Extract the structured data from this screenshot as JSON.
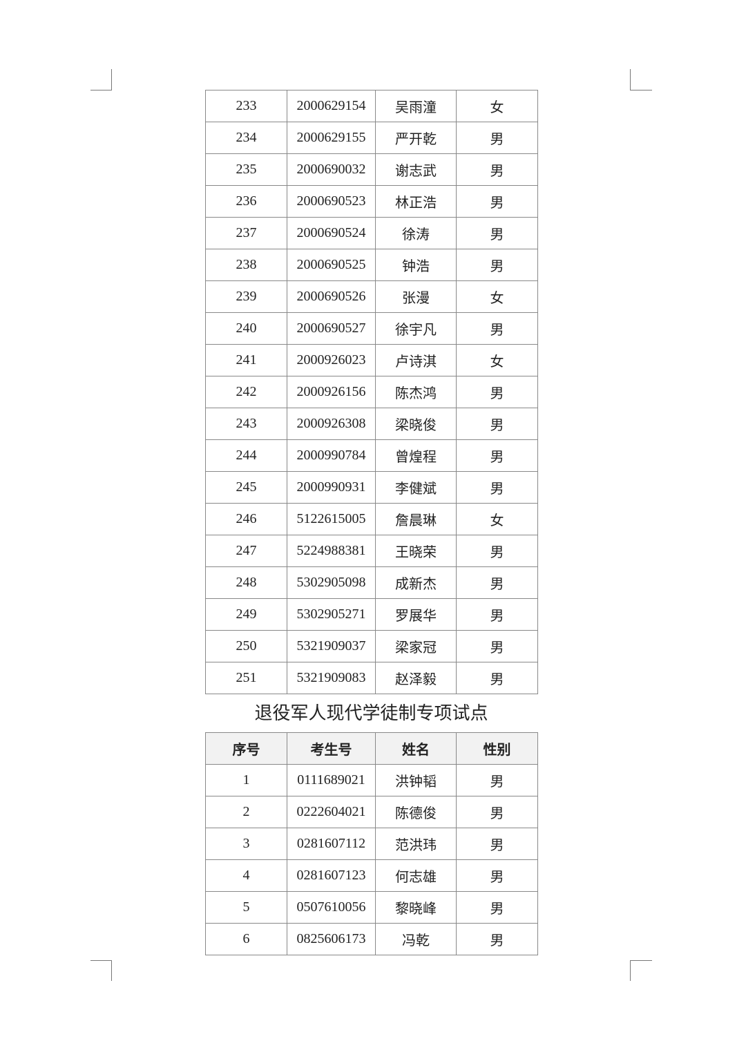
{
  "table1": {
    "rows": [
      [
        "233",
        "2000629154",
        "吴雨潼",
        "女"
      ],
      [
        "234",
        "2000629155",
        "严开乾",
        "男"
      ],
      [
        "235",
        "2000690032",
        "谢志武",
        "男"
      ],
      [
        "236",
        "2000690523",
        "林正浩",
        "男"
      ],
      [
        "237",
        "2000690524",
        "徐涛",
        "男"
      ],
      [
        "238",
        "2000690525",
        "钟浩",
        "男"
      ],
      [
        "239",
        "2000690526",
        "张漫",
        "女"
      ],
      [
        "240",
        "2000690527",
        "徐宇凡",
        "男"
      ],
      [
        "241",
        "2000926023",
        "卢诗淇",
        "女"
      ],
      [
        "242",
        "2000926156",
        "陈杰鸿",
        "男"
      ],
      [
        "243",
        "2000926308",
        "梁晓俊",
        "男"
      ],
      [
        "244",
        "2000990784",
        "曾煌程",
        "男"
      ],
      [
        "245",
        "2000990931",
        "李健斌",
        "男"
      ],
      [
        "246",
        "5122615005",
        "詹晨琳",
        "女"
      ],
      [
        "247",
        "5224988381",
        "王晓荣",
        "男"
      ],
      [
        "248",
        "5302905098",
        "成新杰",
        "男"
      ],
      [
        "249",
        "5302905271",
        "罗展华",
        "男"
      ],
      [
        "250",
        "5321909037",
        "梁家冠",
        "男"
      ],
      [
        "251",
        "5321909083",
        "赵泽毅",
        "男"
      ]
    ]
  },
  "section2": {
    "title": "退役军人现代学徒制专项试点",
    "headers": [
      "序号",
      "考生号",
      "姓名",
      "性别"
    ],
    "rows": [
      [
        "1",
        "0111689021",
        "洪钟韬",
        "男"
      ],
      [
        "2",
        "0222604021",
        "陈德俊",
        "男"
      ],
      [
        "3",
        "0281607112",
        "范洪玮",
        "男"
      ],
      [
        "4",
        "0281607123",
        "何志雄",
        "男"
      ],
      [
        "5",
        "0507610056",
        "黎晓峰",
        "男"
      ],
      [
        "6",
        "0825606173",
        "冯乾",
        "男"
      ]
    ]
  },
  "colors": {
    "header_bg": "#f2f2f2",
    "border": "#888888"
  }
}
